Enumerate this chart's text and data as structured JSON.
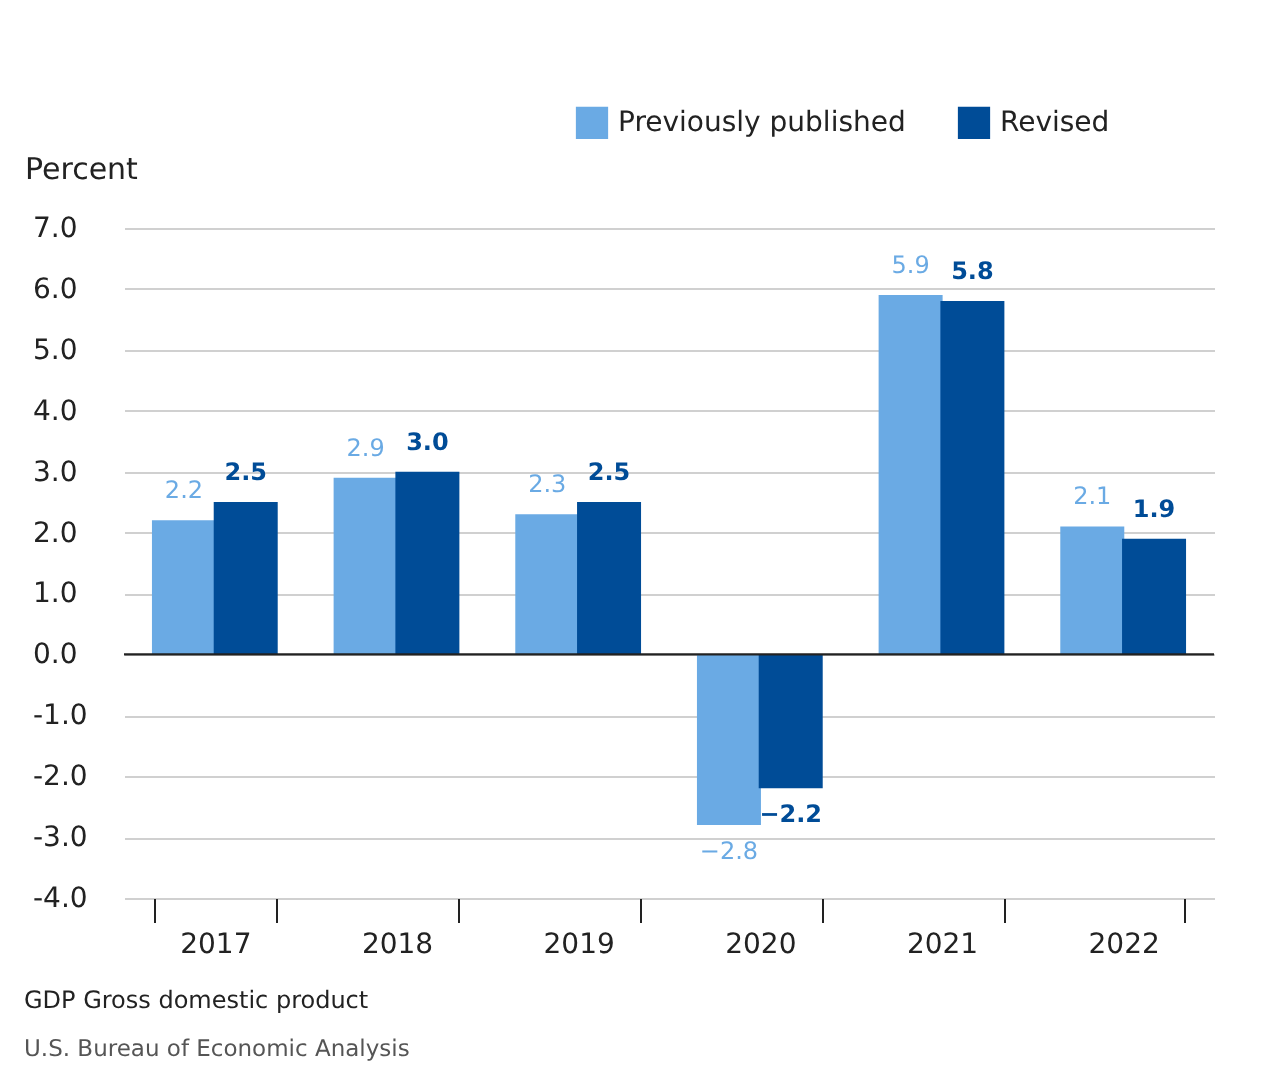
{
  "chart_data": {
    "type": "bar",
    "ylabel": "Percent",
    "categories": [
      "2017",
      "2018",
      "2019",
      "2020",
      "2021",
      "2022"
    ],
    "series": [
      {
        "name": "Previously published",
        "color": "#6aaae4",
        "values": [
          2.2,
          2.9,
          2.3,
          -2.8,
          5.9,
          2.1
        ],
        "value_labels": [
          "2.2",
          "2.9",
          "2.3",
          "−2.8",
          "5.9",
          "2.1"
        ]
      },
      {
        "name": "Revised",
        "color": "#004c97",
        "values": [
          2.5,
          3.0,
          2.5,
          -2.2,
          5.8,
          1.9
        ],
        "value_labels": [
          "2.5",
          "3.0",
          "2.5",
          "−2.2",
          "5.8",
          "1.9"
        ]
      }
    ],
    "ylim": [
      -4,
      7
    ],
    "yticks": [
      {
        "value": -4,
        "label": "-4.0"
      },
      {
        "value": -3,
        "label": "-3.0"
      },
      {
        "value": -2,
        "label": "-2.0"
      },
      {
        "value": -1,
        "label": "-1.0"
      },
      {
        "value": 0,
        "label": "0.0"
      },
      {
        "value": 1,
        "label": "1.0"
      },
      {
        "value": 2,
        "label": "2.0"
      },
      {
        "value": 3,
        "label": "3.0"
      },
      {
        "value": 4,
        "label": "4.0"
      },
      {
        "value": 5,
        "label": "5.0"
      },
      {
        "value": 6,
        "label": "6.0"
      },
      {
        "value": 7,
        "label": "7.0"
      }
    ],
    "grid": "y",
    "legend": "top right",
    "annotations": [
      "GDP    Gross domestic product",
      "U.S. Bureau of Economic Analysis"
    ]
  }
}
